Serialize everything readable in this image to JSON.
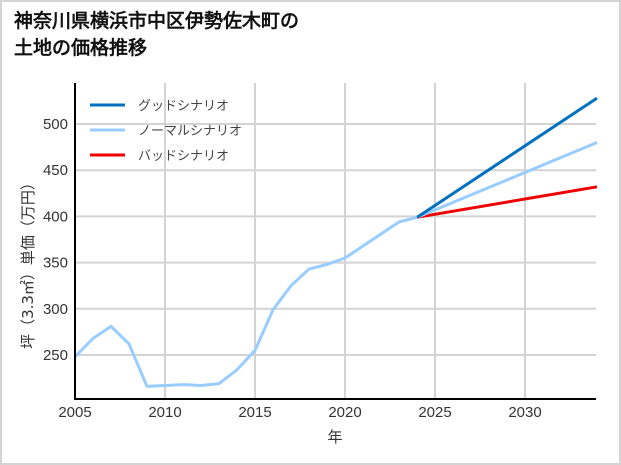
{
  "title_line1": "神奈川県横浜市中区伊勢佐木町の",
  "title_line2": "土地の価格推移",
  "chart_data": {
    "type": "line",
    "title": "神奈川県横浜市中区伊勢佐木町の土地の価格推移",
    "xlabel": "年",
    "ylabel": "坪（3.3㎡）単価（万円）",
    "xlim": [
      2005,
      2034
    ],
    "ylim": [
      202,
      545
    ],
    "xticks": [
      2005,
      2010,
      2015,
      2020,
      2025,
      2030
    ],
    "yticks": [
      250,
      300,
      350,
      400,
      450,
      500
    ],
    "grid": true,
    "legend_position": "upper left",
    "historical": {
      "x": [
        2005,
        2006,
        2007,
        2008,
        2009,
        2010,
        2011,
        2012,
        2013,
        2014,
        2015,
        2016,
        2017,
        2018,
        2019,
        2020,
        2021,
        2022,
        2023,
        2024
      ],
      "values": [
        248,
        268,
        281,
        262,
        216,
        217,
        218,
        217,
        219,
        234,
        255,
        299,
        325,
        343,
        348,
        355,
        368,
        381,
        394,
        399
      ]
    },
    "series": [
      {
        "name": "グッドシナリオ",
        "color": "#0070c0",
        "x": [
          2024,
          2034
        ],
        "values": [
          399,
          528
        ]
      },
      {
        "name": "ノーマルシナリオ",
        "color": "#99ccff",
        "x": [
          2024,
          2034
        ],
        "values": [
          399,
          480
        ]
      },
      {
        "name": "バッドシナリオ",
        "color": "#ee0000",
        "x": [
          2024,
          2034
        ],
        "values": [
          399,
          432
        ]
      }
    ]
  }
}
